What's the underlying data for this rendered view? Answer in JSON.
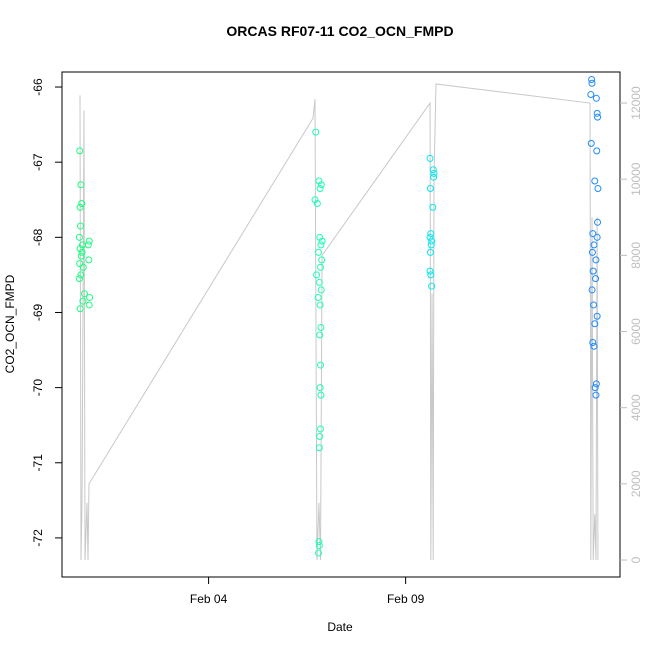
{
  "chart_data": {
    "type": "scatter",
    "title": "ORCAS RF07-11 CO2_OCN_FMPD",
    "x_label": "Date",
    "y_label": "CO2_OCN_FMPD",
    "xlim": [
      0.28,
      14.44
    ],
    "xticks": [
      {
        "value": 4,
        "label": "Feb 04"
      },
      {
        "value": 9,
        "label": "Feb 09"
      }
    ],
    "ylim": [
      -72.52,
      -65.8
    ],
    "yticks": [
      -66,
      -67,
      -68,
      -69,
      -70,
      -71,
      -72
    ],
    "y2lim": [
      -446,
      12815
    ],
    "y2ticks": [
      0,
      2000,
      4000,
      6000,
      8000,
      10000,
      12000
    ],
    "y2_color": "#bebebe",
    "series": [
      {
        "color": "#1aff80",
        "x": [
          0.73,
          0.76,
          0.78,
          0.74,
          0.75,
          0.72,
          0.97,
          0.8,
          0.95,
          0.74,
          0.79,
          0.77,
          0.96,
          0.73,
          0.82,
          0.76,
          0.72,
          0.85,
          0.98,
          0.81,
          0.97,
          0.74
        ],
        "values": [
          -66.85,
          -67.3,
          -67.55,
          -67.6,
          -67.85,
          -68.0,
          -68.05,
          -68.1,
          -68.1,
          -68.15,
          -68.2,
          -68.25,
          -68.3,
          -68.35,
          -68.4,
          -68.5,
          -68.55,
          -68.75,
          -68.8,
          -68.85,
          -68.9,
          -68.95
        ]
      },
      {
        "color": "#1affb8",
        "x": [
          6.72,
          6.8,
          6.86,
          6.83,
          6.7,
          6.76,
          6.88,
          6.82,
          6.85,
          6.79,
          6.87,
          6.84,
          6.74,
          6.81,
          6.86,
          6.78,
          6.83,
          6.85,
          6.82,
          6.84,
          6.83,
          6.85,
          6.84,
          6.82,
          6.81,
          6.8,
          6.81,
          6.79
        ],
        "values": [
          -66.6,
          -67.25,
          -67.3,
          -67.35,
          -67.5,
          -67.55,
          -68.05,
          -68.0,
          -68.1,
          -68.2,
          -68.3,
          -68.4,
          -68.5,
          -68.6,
          -68.7,
          -68.8,
          -68.9,
          -69.2,
          -69.3,
          -69.7,
          -70.0,
          -70.1,
          -70.55,
          -70.65,
          -70.8,
          -72.05,
          -72.1,
          -72.2
        ]
      },
      {
        "color": "#00e8f0",
        "x": [
          9.62,
          9.7,
          9.72,
          9.71,
          9.63,
          9.69,
          9.64,
          9.62,
          9.66,
          9.65,
          9.63,
          9.62,
          9.64,
          9.66
        ],
        "values": [
          -66.95,
          -67.1,
          -67.15,
          -67.2,
          -67.35,
          -67.6,
          -67.95,
          -68.0,
          -68.05,
          -68.1,
          -68.2,
          -68.45,
          -68.5,
          -68.65
        ]
      },
      {
        "color": "#1e8cff",
        "x": [
          13.72,
          13.73,
          13.7,
          13.84,
          13.86,
          13.87,
          13.71,
          13.85,
          13.8,
          13.88,
          13.87,
          13.75,
          13.86,
          13.78,
          13.74,
          13.83,
          13.76,
          13.82,
          13.73,
          13.77,
          13.86,
          13.8,
          13.75,
          13.78,
          13.84,
          13.81,
          13.83
        ],
        "values": [
          -65.9,
          -65.95,
          -66.1,
          -66.15,
          -66.35,
          -66.4,
          -66.75,
          -66.85,
          -67.25,
          -67.35,
          -67.8,
          -67.95,
          -68.0,
          -68.1,
          -68.2,
          -68.3,
          -68.45,
          -68.55,
          -68.7,
          -68.9,
          -69.05,
          -69.15,
          -69.4,
          -69.45,
          -69.95,
          -70.0,
          -70.1
        ]
      },
      {
        "type": "line",
        "axis": "y2",
        "color": "#c8c8c8",
        "x": [
          0.737,
          0.762,
          0.788,
          0.838,
          0.864,
          0.915,
          0.94,
          0.965,
          6.65,
          6.7,
          6.75,
          6.8,
          6.84,
          6.88,
          9.62,
          9.64,
          9.67,
          9.7,
          9.72,
          9.77,
          13.68,
          13.7,
          13.73,
          13.76,
          13.8,
          13.83,
          13.86,
          13.88
        ],
        "values": [
          12200,
          0,
          1500,
          11800,
          0,
          1500,
          0,
          2000,
          11600,
          12100,
          0,
          1500,
          0,
          8000,
          12000,
          0,
          7000,
          0,
          10000,
          12500,
          12000,
          0,
          9000,
          0,
          1200,
          0,
          9000,
          0
        ]
      }
    ]
  }
}
